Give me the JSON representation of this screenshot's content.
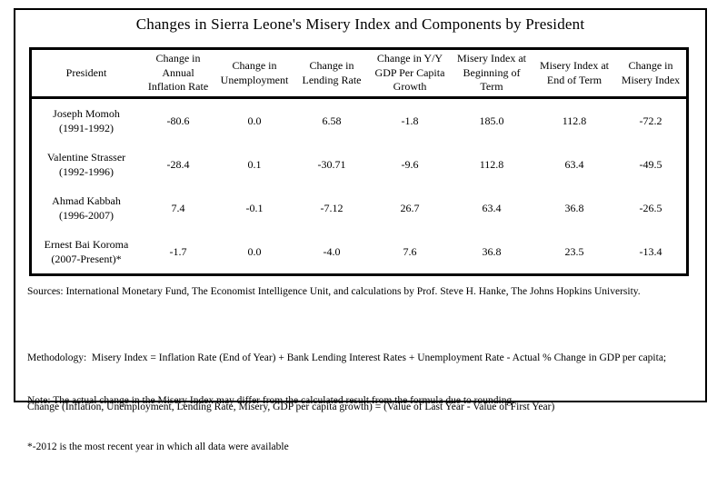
{
  "title": "Changes in Sierra Leone's Misery Index and Components by President",
  "table": {
    "columns": [
      "President",
      "Change in Annual Inflation Rate",
      "Change in Unemployment",
      "Change in Lending Rate",
      "Change in Y/Y GDP Per Capita Growth",
      "Misery Index at Beginning of Term",
      "Misery Index at End of Term",
      "Change in Misery Index"
    ],
    "rows": [
      {
        "president": "Joseph Momoh",
        "term": "(1991-1992)",
        "values": [
          "-80.6",
          "0.0",
          "6.58",
          "-1.8",
          "185.0",
          "112.8",
          "-72.2"
        ]
      },
      {
        "president": "Valentine Strasser",
        "term": "(1992-1996)",
        "values": [
          "-28.4",
          "0.1",
          "-30.71",
          "-9.6",
          "112.8",
          "63.4",
          "-49.5"
        ]
      },
      {
        "president": "Ahmad Kabbah",
        "term": "(1996-2007)",
        "values": [
          "7.4",
          "-0.1",
          "-7.12",
          "26.7",
          "63.4",
          "36.8",
          "-26.5"
        ]
      },
      {
        "president": "Ernest Bai Koroma",
        "term": "(2007-Present)*",
        "values": [
          "-1.7",
          "0.0",
          "-4.0",
          "7.6",
          "36.8",
          "23.5",
          "-13.4"
        ]
      }
    ]
  },
  "chart_data": {
    "type": "table",
    "title": "Changes in Sierra Leone's Misery Index and Components by President",
    "categories": [
      "Joseph Momoh (1991-1992)",
      "Valentine Strasser (1992-1996)",
      "Ahmad Kabbah (1996-2007)",
      "Ernest Bai Koroma (2007-Present)*"
    ],
    "series": [
      {
        "name": "Change in Annual Inflation Rate",
        "values": [
          -80.6,
          -28.4,
          7.4,
          -1.7
        ]
      },
      {
        "name": "Change in Unemployment",
        "values": [
          0.0,
          0.1,
          -0.1,
          0.0
        ]
      },
      {
        "name": "Change in Lending Rate",
        "values": [
          6.58,
          -30.71,
          -7.12,
          -4.0
        ]
      },
      {
        "name": "Change in Y/Y GDP Per Capita Growth",
        "values": [
          -1.8,
          -9.6,
          26.7,
          7.6
        ]
      },
      {
        "name": "Misery Index at Beginning of Term",
        "values": [
          185.0,
          112.8,
          63.4,
          36.8
        ]
      },
      {
        "name": "Misery Index at End of Term",
        "values": [
          112.8,
          63.4,
          36.8,
          23.5
        ]
      },
      {
        "name": "Change in Misery Index",
        "values": [
          -72.2,
          -49.5,
          -26.5,
          -13.4
        ]
      }
    ]
  },
  "notes": {
    "sources": "Sources: International Monetary Fund, The Economist Intelligence Unit, and calculations by Prof. Steve H. Hanke, The Johns Hopkins University.",
    "methodology_line1": "Methodology:  Misery Index = Inflation Rate (End of Year) + Bank Lending Interest Rates + Unemployment Rate - Actual % Change in GDP per capita;",
    "methodology_line2": "Change (Inflation, Unemployment, Lending Rate, Misery, GDP per capita growth) = (Value of Last Year - Value of First Year)",
    "note_line1": "Note: The actual change in the Misery Index may differ from the calculated result from the formula due to rounding.",
    "note_line2": "*-2012 is the most recent year in which all data were available"
  },
  "colors": {
    "background": "#ffffff",
    "border": "#000000",
    "text": "#000000"
  }
}
